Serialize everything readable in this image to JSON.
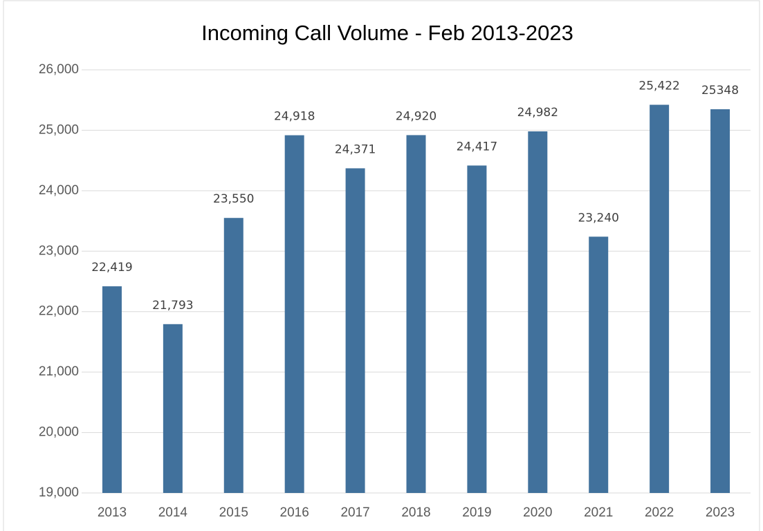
{
  "chart_data": {
    "type": "bar",
    "title": "Incoming Call Volume - Feb 2013-2023",
    "categories": [
      "2013",
      "2014",
      "2015",
      "2016",
      "2017",
      "2018",
      "2019",
      "2020",
      "2021",
      "2022",
      "2023"
    ],
    "values": [
      22419,
      21793,
      23550,
      24918,
      24371,
      24920,
      24417,
      24982,
      23240,
      25422,
      25348
    ],
    "value_labels": [
      "22,419",
      "21,793",
      "23,550",
      "24,918",
      "24,371",
      "24,920",
      "24,417",
      "24,982",
      "23,240",
      "25,422",
      "25348"
    ],
    "color": "#41719c",
    "ylim": [
      19000,
      26000
    ],
    "yticks": [
      {
        "value": 19000,
        "label": "19,000"
      },
      {
        "value": 20000,
        "label": "20,000"
      },
      {
        "value": 21000,
        "label": "21,000"
      },
      {
        "value": 22000,
        "label": "22,000"
      },
      {
        "value": 23000,
        "label": "23,000"
      },
      {
        "value": 24000,
        "label": "24,000"
      },
      {
        "value": 25000,
        "label": "25,000"
      },
      {
        "value": 26000,
        "label": "26,000"
      }
    ],
    "grid": true
  }
}
